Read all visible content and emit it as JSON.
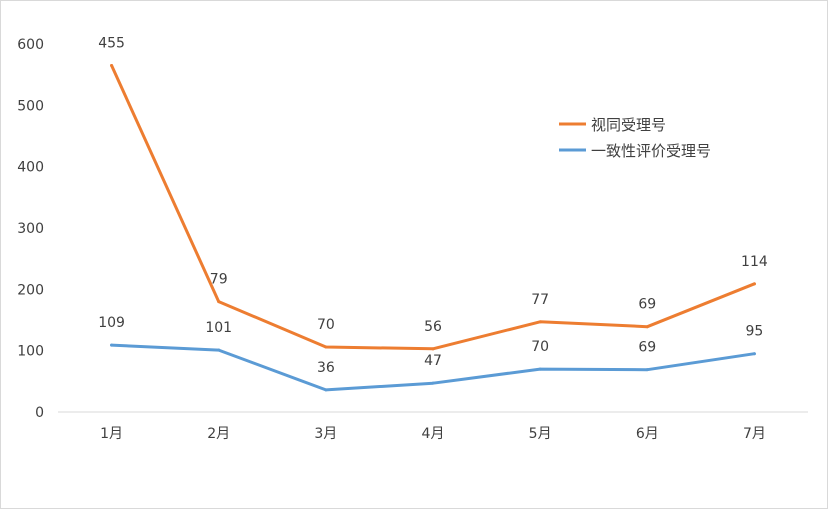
{
  "chart_data": {
    "type": "line",
    "categories": [
      "1月",
      "2月",
      "3月",
      "4月",
      "5月",
      "6月",
      "7月"
    ],
    "ylim": [
      0,
      600
    ],
    "yticks": [
      0,
      100,
      200,
      300,
      400,
      500,
      600
    ],
    "grid": false,
    "legend_position": "right",
    "series": [
      {
        "name": "视同受理号",
        "color": "#ED7D31",
        "values": [
          565,
          180,
          106,
          103,
          147,
          139,
          209
        ],
        "labels": [
          "455",
          "79",
          "70",
          "56",
          "77",
          "69",
          "114"
        ]
      },
      {
        "name": "一致性评价受理号",
        "color": "#5B9BD5",
        "values": [
          109,
          101,
          36,
          47,
          70,
          69,
          95
        ],
        "labels": [
          "109",
          "101",
          "36",
          "47",
          "70",
          "69",
          "95"
        ]
      }
    ]
  }
}
